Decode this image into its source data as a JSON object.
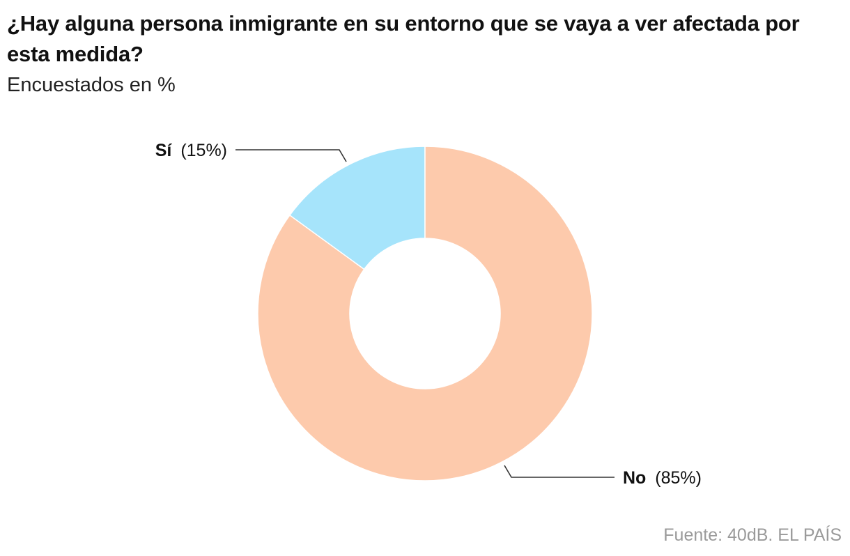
{
  "title": "¿Hay alguna persona inmigrante en su entorno que se vaya a ver afectada por esta medida?",
  "subtitle": "Encuestados en %",
  "source": "Fuente: 40dB. EL PAÍS",
  "chart_data": {
    "type": "pie",
    "donut": true,
    "title": "¿Hay alguna persona inmigrante en su entorno que se vaya a ver afectada por esta medida?",
    "subtitle": "Encuestados en %",
    "slices": [
      {
        "label": "Sí",
        "value": 15,
        "display": "(15%)",
        "color": "#a6e4fb"
      },
      {
        "label": "No",
        "value": 85,
        "display": "(85%)",
        "color": "#fdcaac"
      }
    ],
    "legend": "none"
  }
}
